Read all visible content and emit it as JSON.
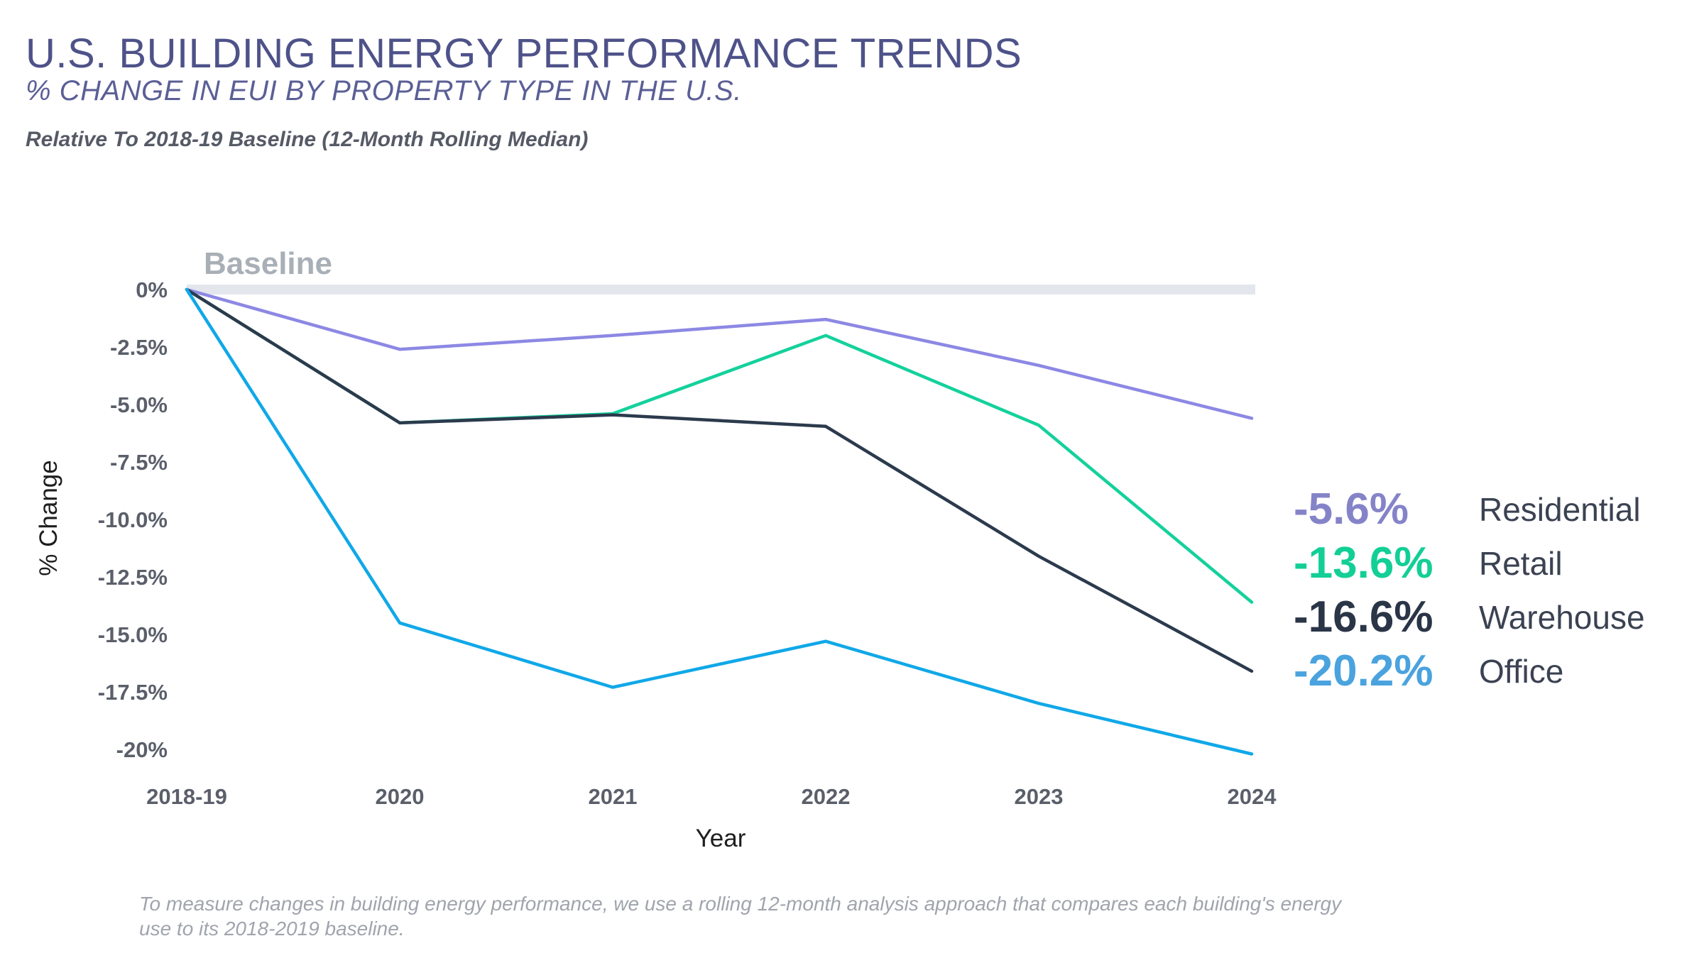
{
  "header": {
    "title": "U.S. BUILDING ENERGY PERFORMANCE TRENDS",
    "subtitle": "% CHANGE IN EUI BY PROPERTY TYPE IN THE U.S.",
    "note": "Relative To 2018-19 Baseline (12-Month Rolling Median)"
  },
  "footnote": "To measure changes in building energy performance, we use a rolling 12-month analysis approach that compares each building's energy use to its 2018-2019 baseline.",
  "chart_data": {
    "type": "line",
    "x": [
      "2018-19",
      "2020",
      "2021",
      "2022",
      "2023",
      "2024"
    ],
    "xlabel": "Year",
    "ylabel": "% Change",
    "ylim": [
      -20,
      0
    ],
    "y_ticks": [
      0,
      -2.5,
      -5,
      -7.5,
      -10,
      -12.5,
      -15,
      -17.5,
      -20
    ],
    "y_tick_labels": [
      "0%",
      "-2.5%",
      "-5.0%",
      "-7.5%",
      "-10.0%",
      "-12.5%",
      "-15.0%",
      "-17.5%",
      "-20%"
    ],
    "baseline": {
      "value": 0,
      "label": "Baseline",
      "color": "#e3e6ec"
    },
    "grid": false,
    "legend_placement": "right",
    "series": [
      {
        "name": "Residential",
        "label": "-5.6%",
        "color": "#8d88e4",
        "label_color": "#8583c8",
        "values": [
          0,
          -2.6,
          -2.0,
          -1.3,
          -3.3,
          -5.6
        ]
      },
      {
        "name": "Retail",
        "label": "-13.6%",
        "color": "#14d19c",
        "label_color": "#12cf96",
        "values": [
          0,
          -5.8,
          -5.4,
          -2.0,
          -5.9,
          -13.6
        ]
      },
      {
        "name": "Warehouse",
        "label": "-16.6%",
        "color": "#2c3a4d",
        "label_color": "#2a3547",
        "values": [
          0,
          -5.8,
          -5.45,
          -5.95,
          -11.6,
          -16.6
        ]
      },
      {
        "name": "Office",
        "label": "-20.2%",
        "color": "#10a8e8",
        "label_color": "#4aa3de",
        "values": [
          0,
          -14.5,
          -17.3,
          -15.3,
          -18.0,
          -20.2
        ]
      }
    ]
  }
}
